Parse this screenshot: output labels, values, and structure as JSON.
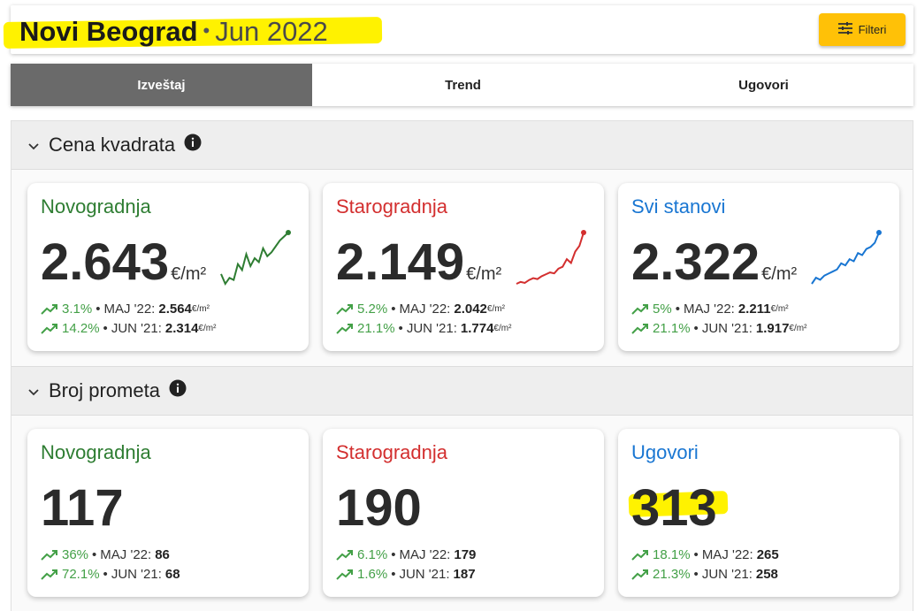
{
  "header": {
    "city": "Novi Beograd",
    "separator": "•",
    "period": "Jun 2022",
    "filter_label": "Filteri",
    "filter_icon": "tune-icon",
    "highlight_color": "#fff200"
  },
  "tabs": [
    {
      "label": "Izveštaj",
      "active": true
    },
    {
      "label": "Trend",
      "active": false
    },
    {
      "label": "Ugovori",
      "active": false
    }
  ],
  "sections": [
    {
      "title": "Cena kvadrata",
      "cards": [
        {
          "label": "Novogradnja",
          "color": "#2e7d32",
          "value": "2.643",
          "unit": "€/m²",
          "sparkline": [
            18,
            8,
            14,
            12,
            28,
            22,
            38,
            26,
            34,
            30,
            44,
            36,
            40,
            46,
            52,
            56,
            60
          ],
          "stats": [
            {
              "pct": "3.1%",
              "period": "MAJ '22:",
              "value": "2.564",
              "unit": "€/m²"
            },
            {
              "pct": "14.2%",
              "period": "JUN '21:",
              "value": "2.314",
              "unit": "€/m²"
            }
          ]
        },
        {
          "label": "Starogradnja",
          "color": "#d32f2f",
          "value": "2.149",
          "unit": "€/m²",
          "sparkline": [
            4,
            6,
            5,
            8,
            10,
            9,
            12,
            14,
            16,
            15,
            20,
            22,
            30,
            26,
            38,
            44,
            58
          ],
          "stats": [
            {
              "pct": "5.2%",
              "period": "MAJ '22:",
              "value": "2.042",
              "unit": "€/m²"
            },
            {
              "pct": "21.1%",
              "period": "JUN '21:",
              "value": "1.774",
              "unit": "€/m²"
            }
          ]
        },
        {
          "label": "Svi stanovi",
          "color": "#1976d2",
          "value": "2.322",
          "unit": "€/m²",
          "sparkline": [
            8,
            14,
            12,
            16,
            18,
            20,
            22,
            28,
            26,
            32,
            30,
            38,
            36,
            42,
            44,
            48,
            58
          ],
          "stats": [
            {
              "pct": "5%",
              "period": "MAJ '22:",
              "value": "2.211",
              "unit": "€/m²"
            },
            {
              "pct": "21.1%",
              "period": "JUN '21:",
              "value": "1.917",
              "unit": "€/m²"
            }
          ]
        }
      ]
    },
    {
      "title": "Broj prometa",
      "cards": [
        {
          "label": "Novogradnja",
          "color": "#2e7d32",
          "value": "117",
          "unit": "",
          "stats": [
            {
              "pct": "36%",
              "period": "MAJ '22:",
              "value": "86",
              "unit": ""
            },
            {
              "pct": "72.1%",
              "period": "JUN '21:",
              "value": "68",
              "unit": ""
            }
          ]
        },
        {
          "label": "Starogradnja",
          "color": "#d32f2f",
          "value": "190",
          "unit": "",
          "stats": [
            {
              "pct": "6.1%",
              "period": "MAJ '22:",
              "value": "179",
              "unit": ""
            },
            {
              "pct": "1.6%",
              "period": "JUN '21:",
              "value": "187",
              "unit": ""
            }
          ]
        },
        {
          "label": "Ugovori",
          "color": "#1976d2",
          "value": "313",
          "unit": "",
          "stats": [
            {
              "pct": "18.1%",
              "period": "MAJ '22:",
              "value": "265",
              "unit": ""
            },
            {
              "pct": "21.3%",
              "period": "JUN '21:",
              "value": "258",
              "unit": ""
            }
          ]
        }
      ]
    }
  ]
}
